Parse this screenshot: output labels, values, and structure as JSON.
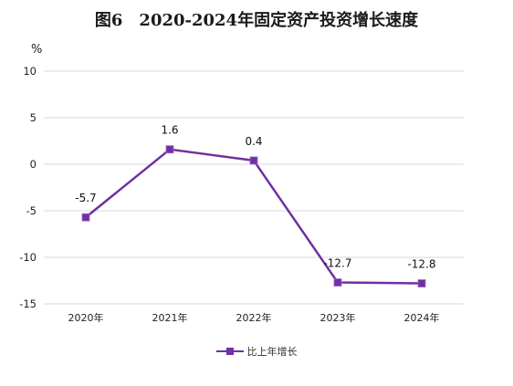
{
  "title": "图6　2020-2024年固定资产投资增长速度",
  "unit": "%",
  "legend_label": "比上年增长",
  "series_color": "#7030a0",
  "chart_data": {
    "type": "line",
    "title": "图6　2020-2024年固定资产投资增长速度",
    "xlabel": "",
    "ylabel": "%",
    "categories": [
      "2020年",
      "2021年",
      "2022年",
      "2023年",
      "2024年"
    ],
    "series": [
      {
        "name": "比上年增长",
        "values": [
          -5.7,
          1.6,
          0.4,
          -12.7,
          -12.8
        ],
        "data_labels": [
          "-5.7",
          "1.6",
          "0.4",
          "-12.7",
          "-12.8"
        ]
      }
    ],
    "ylim": [
      -15,
      10
    ],
    "yticks": [
      "10",
      "5",
      "0",
      "-5",
      "-10",
      "-15"
    ],
    "grid": true,
    "legend_position": "bottom"
  }
}
